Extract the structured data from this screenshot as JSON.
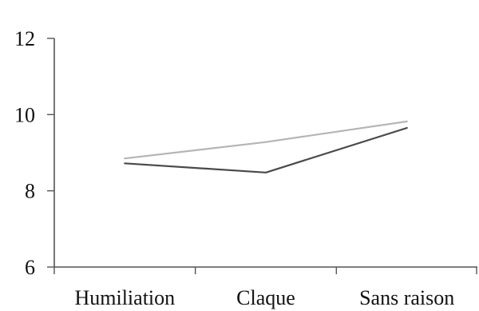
{
  "chart_data": {
    "type": "line",
    "title": "",
    "xlabel": "",
    "ylabel": "",
    "categories": [
      "Humiliation",
      "Claque",
      "Sans raison"
    ],
    "ylim": [
      6,
      12
    ],
    "yticks": [
      6,
      8,
      10,
      12
    ],
    "y_tick_labels": [
      "6",
      "8",
      "10",
      "12"
    ],
    "grid": false,
    "legend": "none",
    "series": [
      {
        "values": [
          8.85,
          9.28,
          9.82
        ],
        "color": "#b5b5b5"
      },
      {
        "values": [
          8.72,
          8.48,
          9.65
        ],
        "color": "#4a4a4a"
      }
    ]
  }
}
